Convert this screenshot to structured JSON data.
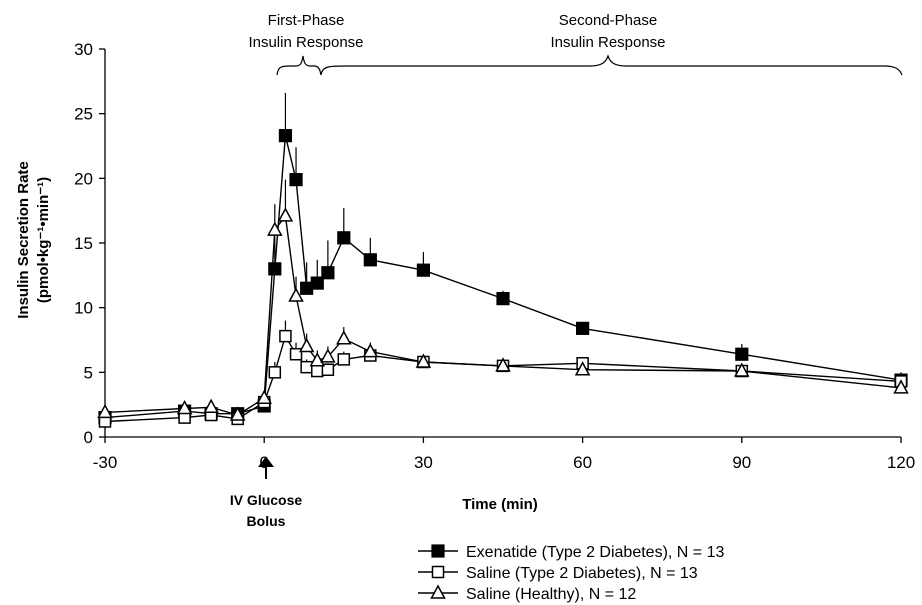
{
  "chart_data": {
    "type": "line",
    "title": "",
    "xlabel": "Time (min)",
    "ylabel_line1": "Insulin Secretion Rate",
    "ylabel_line2": "(pmol•kg⁻¹•min⁻¹)",
    "xlim": [
      -30,
      120
    ],
    "ylim": [
      0,
      30
    ],
    "xticks": [
      -30,
      0,
      30,
      60,
      90,
      120
    ],
    "yticks": [
      0,
      5,
      10,
      15,
      20,
      25,
      30
    ],
    "grid": false,
    "legend_position": "bottom-right",
    "annotations": {
      "first_phase_line1": "First-Phase",
      "first_phase_line2": "Insulin Response",
      "second_phase_line1": "Second-Phase",
      "second_phase_line2": "Insulin Response",
      "bolus_line1": "IV Glucose",
      "bolus_line2": "Bolus"
    },
    "series": [
      {
        "name": "Exenatide (Type 2 Diabetes), N = 13",
        "marker": "square-filled",
        "x": [
          -30,
          -15,
          -10,
          -5,
          0,
          2,
          4,
          6,
          8,
          10,
          12,
          15,
          20,
          30,
          45,
          60,
          90,
          120
        ],
        "y": [
          1.5,
          2.0,
          1.8,
          1.8,
          2.4,
          13.0,
          23.3,
          19.9,
          11.5,
          11.9,
          12.7,
          15.4,
          13.7,
          12.9,
          10.7,
          8.4,
          6.4,
          4.4
        ],
        "err": [
          0.3,
          0.3,
          0.3,
          0.3,
          0.5,
          2.5,
          3.3,
          2.5,
          2.0,
          1.8,
          2.5,
          2.3,
          1.7,
          1.4,
          0.6,
          0.4,
          0.8,
          0.6
        ]
      },
      {
        "name": "Saline (Type 2 Diabetes), N = 13",
        "marker": "square-open",
        "x": [
          -30,
          -15,
          -10,
          -5,
          0,
          2,
          4,
          6,
          8,
          10,
          12,
          15,
          20,
          30,
          45,
          60,
          90,
          120
        ],
        "y": [
          1.2,
          1.5,
          1.7,
          1.4,
          2.7,
          5.0,
          7.8,
          6.4,
          5.4,
          5.1,
          5.2,
          6.0,
          6.3,
          5.8,
          5.5,
          5.7,
          5.1,
          4.3
        ],
        "err": [
          0.2,
          0.2,
          0.2,
          0.2,
          0.4,
          0.8,
          1.2,
          0.9,
          0.6,
          0.5,
          0.5,
          0.6,
          0.6,
          0.5,
          0.4,
          0.4,
          0.3,
          0.3
        ]
      },
      {
        "name": "Saline (Healthy), N = 12",
        "marker": "triangle-open",
        "x": [
          -30,
          -15,
          -10,
          -5,
          0,
          2,
          4,
          6,
          8,
          10,
          12,
          15,
          20,
          30,
          45,
          60,
          90,
          120
        ],
        "y": [
          1.9,
          2.2,
          2.3,
          1.7,
          3.0,
          16.0,
          17.1,
          10.9,
          7.0,
          5.9,
          6.2,
          7.6,
          6.6,
          5.8,
          5.5,
          5.2,
          5.1,
          3.8
        ],
        "err": [
          0.3,
          0.3,
          0.3,
          0.3,
          0.4,
          2.0,
          2.8,
          1.5,
          1.0,
          0.8,
          0.8,
          0.9,
          0.7,
          0.5,
          0.4,
          0.4,
          0.4,
          0.4
        ]
      }
    ]
  }
}
